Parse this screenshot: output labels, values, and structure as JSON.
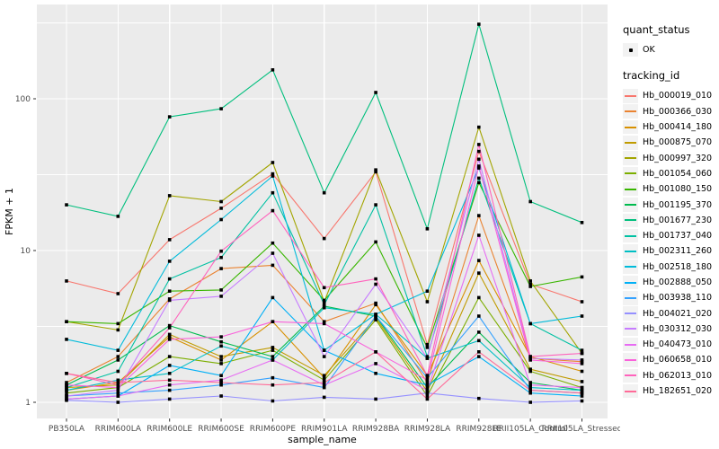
{
  "colors": {
    "background": "#FFFFFF",
    "panel": "#EBEBEB",
    "grid_major": "#FFFFFF",
    "grid_minor": "#F7F7F7",
    "tick_mark": "#333333",
    "tick_text": "#4D4D4D",
    "axis_title_text": "#000000",
    "point": "#000000",
    "legend_key_bg": "#F2F2F2"
  },
  "legend": {
    "quant_status_title": "quant_status",
    "quant_status_items": [
      {
        "label": "OK",
        "symbol": "black-point"
      }
    ],
    "tracking_title": "tracking_id"
  },
  "chart_data": {
    "type": "line",
    "title": "",
    "xlabel": "sample_name",
    "ylabel": "FPKM + 1",
    "y_scale": "log10",
    "y_ticks": [
      {
        "label": "1",
        "value": 1
      },
      {
        "label": "10",
        "value": 10
      },
      {
        "label": "100",
        "value": 100
      }
    ],
    "y_minor_gridlines": [
      3.1623,
      31.623,
      316.23
    ],
    "ylim": [
      0.82,
      420
    ],
    "grid": "major-white-on-gray-panel",
    "legend_position": "right",
    "point_shape": "small-black-square",
    "categories": [
      "PB350LA",
      "RRIM600LA",
      "RRIM600LE",
      "RRIM600SE",
      "RRIM600PE",
      "RRIM901LA",
      "RRIM928BA",
      "RRIM928LA",
      "RRIM928LE",
      "RRII105LA_Control",
      "RRII105LA_Stressed"
    ],
    "series": [
      {
        "name": "Hb_000019_010",
        "color": "#F8766D",
        "values": [
          6.3,
          5.2,
          11.8,
          19,
          32,
          12,
          33,
          2.4,
          45,
          6.0,
          4.6
        ]
      },
      {
        "name": "Hb_000366_030",
        "color": "#EA8331",
        "values": [
          1.35,
          2.0,
          4.8,
          7.6,
          8.0,
          3.4,
          4.5,
          1.35,
          17,
          1.95,
          1.85
        ]
      },
      {
        "name": "Hb_000414_180",
        "color": "#D89000",
        "values": [
          1.2,
          1.35,
          2.7,
          1.9,
          3.4,
          1.45,
          4.4,
          1.5,
          8.6,
          2.0,
          1.6
        ]
      },
      {
        "name": "Hb_000875_070",
        "color": "#C09B00",
        "values": [
          1.25,
          1.3,
          2.8,
          2.0,
          2.3,
          1.5,
          3.6,
          1.18,
          7.1,
          1.65,
          1.37
        ]
      },
      {
        "name": "Hb_000997_320",
        "color": "#A3A500",
        "values": [
          3.4,
          3.0,
          23,
          21,
          38,
          4.6,
          34,
          4.6,
          65,
          6.3,
          2.1
        ]
      },
      {
        "name": "Hb_001054_060",
        "color": "#7CAE00",
        "values": [
          1.15,
          1.25,
          2.0,
          1.8,
          2.2,
          1.4,
          3.5,
          1.1,
          4.9,
          1.6,
          1.25
        ]
      },
      {
        "name": "Hb_001080_150",
        "color": "#39B600",
        "values": [
          3.4,
          3.3,
          5.4,
          5.5,
          11.2,
          4.7,
          11.4,
          2.3,
          28,
          5.8,
          6.7
        ]
      },
      {
        "name": "Hb_001195_370",
        "color": "#00BB4E",
        "values": [
          1.3,
          1.9,
          3.2,
          2.5,
          2.0,
          4.3,
          3.7,
          1.25,
          2.9,
          1.35,
          1.2
        ]
      },
      {
        "name": "Hb_001677_230",
        "color": "#00BF7D",
        "values": [
          20,
          16.8,
          76,
          86,
          155,
          24,
          110,
          13.9,
          310,
          21,
          15.3
        ]
      },
      {
        "name": "Hb_001737_040",
        "color": "#00C1A3",
        "values": [
          1.25,
          1.6,
          6.5,
          9.0,
          24,
          4.4,
          20,
          2.0,
          30,
          3.3,
          2.2
        ]
      },
      {
        "name": "Hb_002311_260",
        "color": "#00BFC4",
        "values": [
          1.2,
          1.4,
          1.55,
          2.35,
          1.9,
          4.2,
          3.8,
          1.95,
          2.55,
          1.25,
          1.2
        ]
      },
      {
        "name": "Hb_002518_180",
        "color": "#00BBDA",
        "values": [
          2.6,
          2.2,
          8.5,
          16,
          31,
          2.2,
          3.8,
          5.4,
          35,
          3.3,
          3.7
        ]
      },
      {
        "name": "Hb_002888_050",
        "color": "#00B0F6",
        "values": [
          1.05,
          1.1,
          1.75,
          1.5,
          4.9,
          2.2,
          1.55,
          1.3,
          2.0,
          1.15,
          1.1
        ]
      },
      {
        "name": "Hb_003938_110",
        "color": "#35A2FF",
        "values": [
          1.1,
          1.15,
          1.2,
          1.3,
          1.45,
          1.25,
          3.7,
          1.45,
          3.7,
          1.2,
          1.15
        ]
      },
      {
        "name": "Hb_004021_020",
        "color": "#9590FF",
        "values": [
          1.03,
          1.0,
          1.05,
          1.1,
          1.02,
          1.08,
          1.05,
          1.15,
          1.06,
          1.0,
          1.02
        ]
      },
      {
        "name": "Hb_030312_030",
        "color": "#C77CFF",
        "values": [
          1.1,
          1.2,
          4.7,
          5.0,
          9.6,
          2.0,
          6.0,
          1.95,
          40,
          1.95,
          1.9
        ]
      },
      {
        "name": "Hb_040473_010",
        "color": "#E76BF3",
        "values": [
          1.05,
          1.1,
          1.3,
          1.4,
          1.9,
          1.3,
          1.8,
          1.2,
          12.6,
          1.3,
          1.25
        ]
      },
      {
        "name": "Hb_060658_010",
        "color": "#FA62DB",
        "values": [
          1.3,
          1.25,
          2.6,
          2.7,
          3.4,
          3.3,
          2.15,
          1.4,
          36,
          1.9,
          1.8
        ]
      },
      {
        "name": "Hb_062013_010",
        "color": "#FF62BC",
        "values": [
          1.55,
          1.3,
          3.1,
          9.9,
          18.3,
          5.7,
          6.5,
          1.5,
          50,
          2.0,
          2.1
        ]
      },
      {
        "name": "Hb_182651_020",
        "color": "#FF6A98",
        "values": [
          1.55,
          1.35,
          1.4,
          1.35,
          1.3,
          1.35,
          2.15,
          1.05,
          2.15,
          1.2,
          1.15
        ]
      }
    ]
  }
}
